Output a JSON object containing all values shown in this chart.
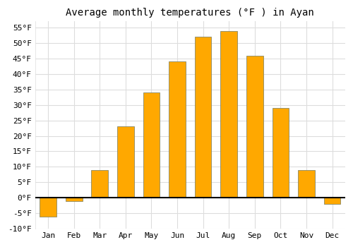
{
  "months": [
    "Jan",
    "Feb",
    "Mar",
    "Apr",
    "May",
    "Jun",
    "Jul",
    "Aug",
    "Sep",
    "Oct",
    "Nov",
    "Dec"
  ],
  "values": [
    -6,
    -1,
    9,
    23,
    34,
    44,
    52,
    54,
    46,
    29,
    9,
    -2
  ],
  "bar_color": "#FFA800",
  "bar_edge_color": "#888866",
  "title": "Average monthly temperatures (°F ) in Ayan",
  "ylim": [
    -10,
    57
  ],
  "yticks": [
    -10,
    -5,
    0,
    5,
    10,
    15,
    20,
    25,
    30,
    35,
    40,
    45,
    50,
    55
  ],
  "ytick_labels": [
    "-10°F",
    "-5°F",
    "0°F",
    "5°F",
    "10°F",
    "15°F",
    "20°F",
    "25°F",
    "30°F",
    "35°F",
    "40°F",
    "45°F",
    "50°F",
    "55°F"
  ],
  "figure_bg": "#ffffff",
  "plot_bg": "#ffffff",
  "grid_color": "#dddddd",
  "title_fontsize": 10,
  "tick_fontsize": 8
}
